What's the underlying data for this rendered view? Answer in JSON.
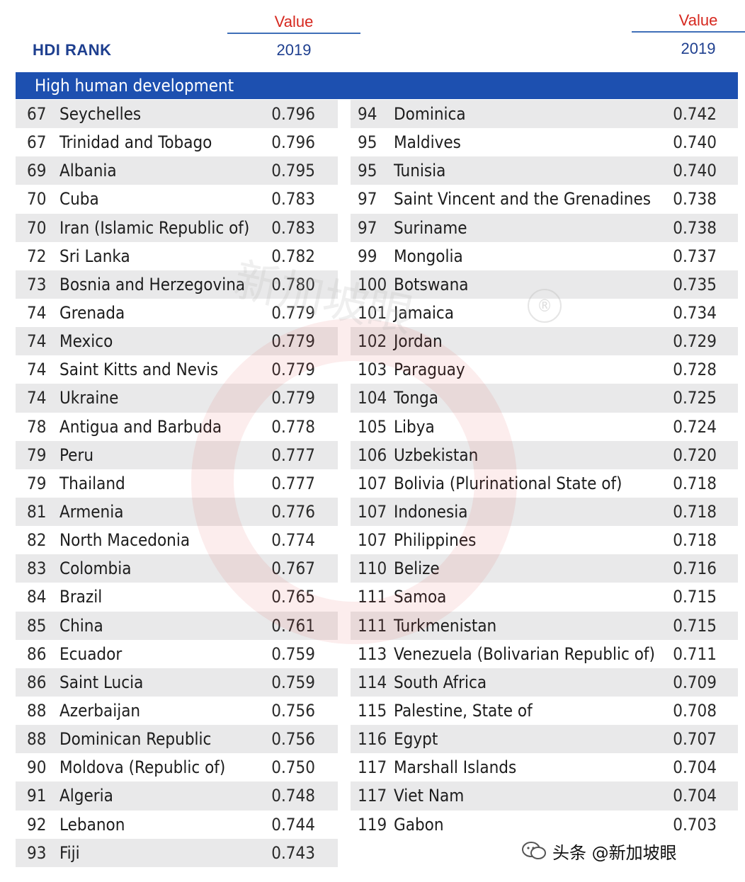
{
  "header": {
    "rank_label": "HDI RANK",
    "value_label": "Value",
    "year_label": "2019"
  },
  "section_title": "High human development",
  "left_rows": [
    {
      "rank": "67",
      "country": "Seychelles",
      "value": "0.796"
    },
    {
      "rank": "67",
      "country": "Trinidad and Tobago",
      "value": "0.796"
    },
    {
      "rank": "69",
      "country": "Albania",
      "value": "0.795"
    },
    {
      "rank": "70",
      "country": "Cuba",
      "value": "0.783"
    },
    {
      "rank": "70",
      "country": "Iran (Islamic Republic of)",
      "value": "0.783"
    },
    {
      "rank": "72",
      "country": "Sri Lanka",
      "value": "0.782"
    },
    {
      "rank": "73",
      "country": "Bosnia and Herzegovina",
      "value": "0.780"
    },
    {
      "rank": "74",
      "country": "Grenada",
      "value": "0.779"
    },
    {
      "rank": "74",
      "country": "Mexico",
      "value": "0.779"
    },
    {
      "rank": "74",
      "country": "Saint Kitts and Nevis",
      "value": "0.779"
    },
    {
      "rank": "74",
      "country": "Ukraine",
      "value": "0.779"
    },
    {
      "rank": "78",
      "country": "Antigua and Barbuda",
      "value": "0.778"
    },
    {
      "rank": "79",
      "country": "Peru",
      "value": "0.777"
    },
    {
      "rank": "79",
      "country": "Thailand",
      "value": "0.777"
    },
    {
      "rank": "81",
      "country": "Armenia",
      "value": "0.776"
    },
    {
      "rank": "82",
      "country": "North Macedonia",
      "value": "0.774"
    },
    {
      "rank": "83",
      "country": "Colombia",
      "value": "0.767"
    },
    {
      "rank": "84",
      "country": "Brazil",
      "value": "0.765"
    },
    {
      "rank": "85",
      "country": "China",
      "value": "0.761"
    },
    {
      "rank": "86",
      "country": "Ecuador",
      "value": "0.759"
    },
    {
      "rank": "86",
      "country": "Saint Lucia",
      "value": "0.759"
    },
    {
      "rank": "88",
      "country": "Azerbaijan",
      "value": "0.756"
    },
    {
      "rank": "88",
      "country": "Dominican Republic",
      "value": "0.756"
    },
    {
      "rank": "90",
      "country": "Moldova (Republic of)",
      "value": "0.750"
    },
    {
      "rank": "91",
      "country": "Algeria",
      "value": "0.748"
    },
    {
      "rank": "92",
      "country": "Lebanon",
      "value": "0.744"
    },
    {
      "rank": "93",
      "country": "Fiji",
      "value": "0.743"
    }
  ],
  "right_rows": [
    {
      "rank": "94",
      "country": "Dominica",
      "value": "0.742"
    },
    {
      "rank": "95",
      "country": "Maldives",
      "value": "0.740"
    },
    {
      "rank": "95",
      "country": "Tunisia",
      "value": "0.740"
    },
    {
      "rank": "97",
      "country": "Saint Vincent and the Grenadines",
      "value": "0.738"
    },
    {
      "rank": "97",
      "country": "Suriname",
      "value": "0.738"
    },
    {
      "rank": "99",
      "country": "Mongolia",
      "value": "0.737"
    },
    {
      "rank": "100",
      "country": "Botswana",
      "value": "0.735"
    },
    {
      "rank": "101",
      "country": "Jamaica",
      "value": "0.734"
    },
    {
      "rank": "102",
      "country": "Jordan",
      "value": "0.729"
    },
    {
      "rank": "103",
      "country": "Paraguay",
      "value": "0.728"
    },
    {
      "rank": "104",
      "country": "Tonga",
      "value": "0.725"
    },
    {
      "rank": "105",
      "country": "Libya",
      "value": "0.724"
    },
    {
      "rank": "106",
      "country": "Uzbekistan",
      "value": "0.720"
    },
    {
      "rank": "107",
      "country": "Bolivia (Plurinational State of)",
      "value": "0.718"
    },
    {
      "rank": "107",
      "country": "Indonesia",
      "value": "0.718"
    },
    {
      "rank": "107",
      "country": "Philippines",
      "value": "0.718"
    },
    {
      "rank": "110",
      "country": "Belize",
      "value": "0.716"
    },
    {
      "rank": "111",
      "country": "Samoa",
      "value": "0.715"
    },
    {
      "rank": "111",
      "country": "Turkmenistan",
      "value": "0.715"
    },
    {
      "rank": "113",
      "country": "Venezuela (Bolivarian Republic of)",
      "value": "0.711"
    },
    {
      "rank": "114",
      "country": "South Africa",
      "value": "0.709"
    },
    {
      "rank": "115",
      "country": "Palestine, State of",
      "value": "0.708"
    },
    {
      "rank": "116",
      "country": "Egypt",
      "value": "0.707"
    },
    {
      "rank": "117",
      "country": "Marshall Islands",
      "value": "0.704"
    },
    {
      "rank": "117",
      "country": "Viet Nam",
      "value": "0.704"
    },
    {
      "rank": "119",
      "country": "Gabon",
      "value": "0.703"
    }
  ],
  "watermark": {
    "text": "新加坡眼",
    "registered_mark": "®",
    "credit": "头条 @新加坡眼",
    "icon": "wechat-icon"
  },
  "colors": {
    "band": "#1d50b0",
    "value_header": "#d6281f",
    "year_header": "#1e3f8f",
    "row_shade": "#e9e9ea"
  }
}
